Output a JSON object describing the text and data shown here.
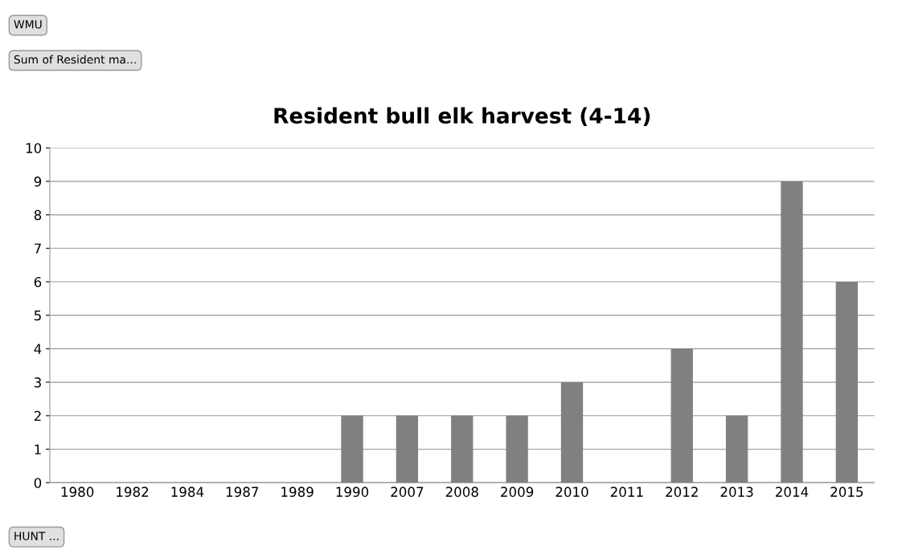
{
  "chart_data": {
    "type": "bar",
    "title": "Resident bull elk harvest (4-14)",
    "categories": [
      "1980",
      "1982",
      "1984",
      "1987",
      "1989",
      "1990",
      "2007",
      "2008",
      "2009",
      "2010",
      "2011",
      "2012",
      "2013",
      "2014",
      "2015"
    ],
    "values": [
      0,
      0,
      0,
      0,
      0,
      2,
      2,
      2,
      2,
      3,
      0,
      4,
      2,
      9,
      6
    ],
    "color": "#808080",
    "ylim": [
      0,
      10
    ],
    "yticks": [
      0,
      1,
      2,
      3,
      4,
      5,
      6,
      7,
      8,
      9,
      10
    ],
    "grid": "y",
    "annotations": [
      "WMU",
      "Sum of Resident ma...",
      "HUNT ..."
    ]
  }
}
